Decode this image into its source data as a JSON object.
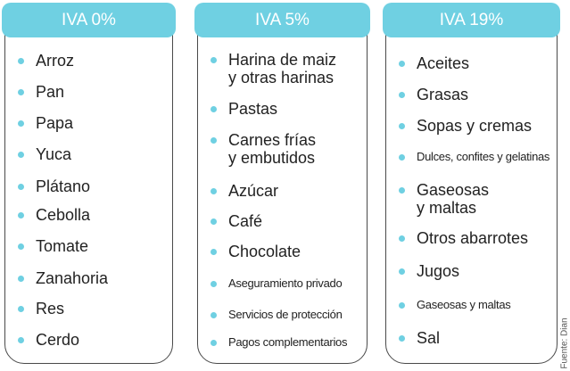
{
  "columns": [
    {
      "title": "IVA 0%",
      "items": [
        "Arroz",
        "Pan",
        "Papa",
        "Yuca",
        "Plátano",
        "Cebolla",
        "Tomate",
        "Zanahoria",
        "Res",
        "Cerdo"
      ]
    },
    {
      "title": "IVA 5%",
      "items": [
        "Harina de maiz\ny otras harinas",
        "Pastas",
        "Carnes frías\ny embutidos",
        "Azúcar",
        "Café",
        "Chocolate",
        "Aseguramiento privado",
        "Servicios de protección",
        "Pagos complementarios"
      ]
    },
    {
      "title": "IVA 19%",
      "items": [
        "Aceites",
        "Grasas",
        "Sopas y cremas",
        "Dulces, confites y gelatinas",
        "Gaseosas\ny maltas",
        "Otros abarrotes",
        "Jugos",
        "Gaseosas y maltas",
        "Sal"
      ]
    }
  ],
  "source": "Fuente: Dian",
  "colors": {
    "accent": "#6fd0e2",
    "border": "#4a4a4a",
    "text": "#222222"
  }
}
